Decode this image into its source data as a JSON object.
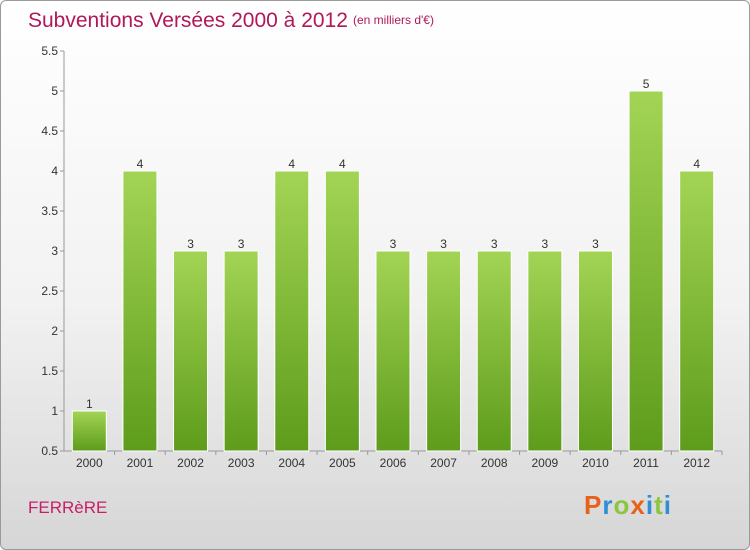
{
  "header": {
    "title": "Subventions Versées 2000 à 2012",
    "subtitle": "(en milliers d'€)"
  },
  "footer": {
    "commune": "FERRèRE",
    "logo_letters": [
      "P",
      "r",
      "o",
      "x",
      "i",
      "t",
      "i"
    ],
    "logo_colors": [
      "#e8611a",
      "#2e8fd6",
      "#8cc63f",
      "#e8611a",
      "#2e8fd6",
      "#8cc63f",
      "#2e8fd6"
    ]
  },
  "chart_data": {
    "type": "bar",
    "categories": [
      "2000",
      "2001",
      "2002",
      "2003",
      "2004",
      "2005",
      "2006",
      "2007",
      "2008",
      "2009",
      "2010",
      "2011",
      "2012"
    ],
    "values": [
      1,
      4,
      3,
      3,
      4,
      4,
      3,
      3,
      3,
      3,
      3,
      5,
      4
    ],
    "title": "Subventions Versées 2000 à 2012",
    "subtitle": "(en milliers d'€)",
    "xlabel": "",
    "ylabel": "",
    "ylim": [
      0.5,
      5.5
    ],
    "yticks": [
      "0.5",
      "1",
      "1.5",
      "2",
      "2.5",
      "3",
      "3.5",
      "4",
      "4.5",
      "5",
      "5.5"
    ],
    "grid": false,
    "bar_color": "#7ab833"
  }
}
